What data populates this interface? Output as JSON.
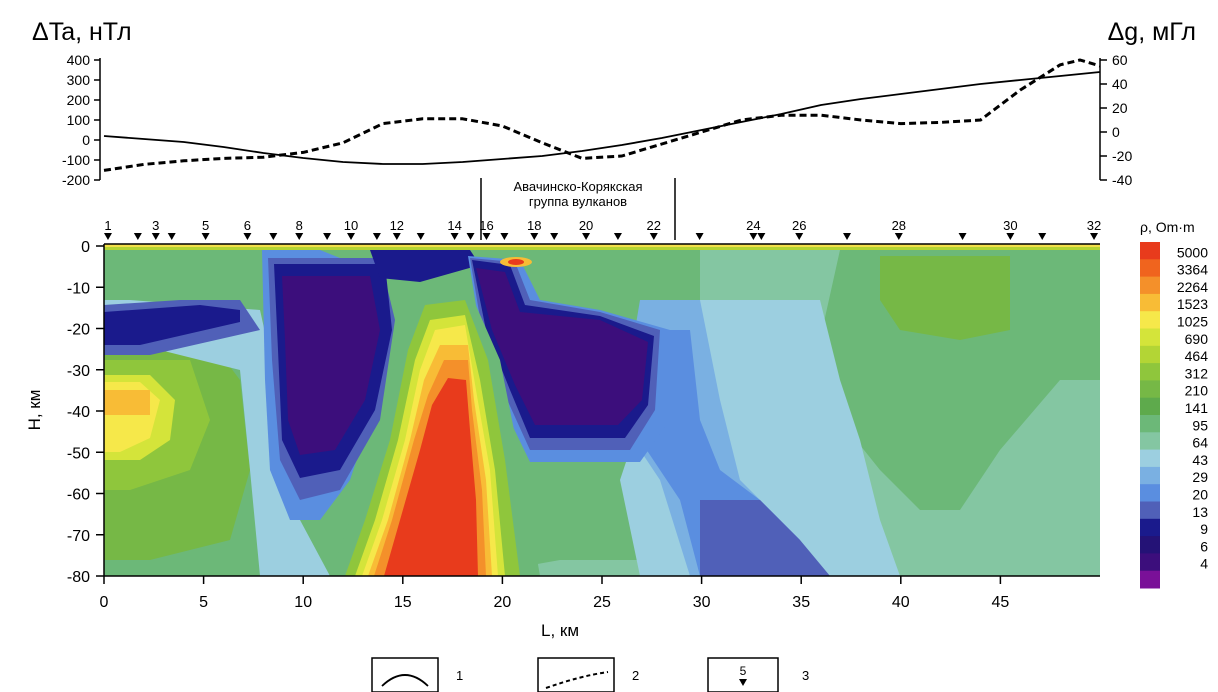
{
  "chart_data": [
    {
      "type": "line",
      "panel": "profiles",
      "left_axis_title": "ΔTa, нТл",
      "right_axis_title": "Δg, мГл",
      "left_ticks": [
        "400",
        "300",
        "200",
        "100",
        "0",
        "-100",
        "-200"
      ],
      "right_ticks": [
        "60",
        "40",
        "20",
        "0",
        "-20",
        "-40"
      ],
      "left_ylim": [
        -200,
        400
      ],
      "right_ylim": [
        -40,
        60
      ],
      "x_range_km": [
        0,
        50
      ],
      "series": [
        {
          "style": "solid",
          "axis": "left",
          "x": [
            0,
            2,
            4,
            6,
            8,
            10,
            12,
            14,
            16,
            18,
            20,
            22,
            24,
            26,
            28,
            30,
            32,
            34,
            36,
            38,
            40,
            42,
            44,
            46,
            48,
            50
          ],
          "values": [
            20,
            5,
            -10,
            -35,
            -65,
            -90,
            -110,
            -120,
            -120,
            -110,
            -95,
            -80,
            -55,
            -25,
            10,
            50,
            90,
            130,
            175,
            205,
            230,
            255,
            280,
            300,
            320,
            340
          ]
        },
        {
          "style": "dashed",
          "axis": "right",
          "x": [
            0,
            2,
            4,
            6,
            8,
            10,
            12,
            14,
            16,
            18,
            20,
            22,
            24,
            26,
            28,
            30,
            32,
            34,
            36,
            38,
            40,
            42,
            44,
            46,
            48,
            49,
            50
          ],
          "values": [
            -32,
            -27,
            -24,
            -22,
            -21,
            -17,
            -9,
            7,
            11,
            11,
            5,
            -9,
            -22,
            -20,
            -10,
            0,
            10,
            14,
            14,
            10,
            7,
            8,
            10,
            35,
            56,
            60,
            55
          ]
        }
      ],
      "group_label_line1": "Авачинско-Корякская",
      "group_label_line2": "группа вулканов"
    },
    {
      "type": "heatmap",
      "panel": "resistivity-section",
      "xlabel": "L, км",
      "ylabel": "H, км",
      "x_ticks": [
        0,
        5,
        10,
        15,
        20,
        25,
        30,
        35,
        40,
        45
      ],
      "y_ticks": [
        0,
        -10,
        -20,
        -30,
        -40,
        -50,
        -60,
        -70,
        -80
      ],
      "x_range_km": [
        0,
        50
      ],
      "depth_range_km": [
        0,
        -80
      ],
      "colorbar_title": "ρ, Om·m",
      "colorbar_levels": [
        {
          "label": "5000",
          "color": "#e83b1c"
        },
        {
          "label": "3364",
          "color": "#f0641e"
        },
        {
          "label": "2264",
          "color": "#f4902a"
        },
        {
          "label": "1523",
          "color": "#f8bc36"
        },
        {
          "label": "1025",
          "color": "#f6e84a"
        },
        {
          "label": "690",
          "color": "#d4e43a"
        },
        {
          "label": "464",
          "color": "#b3d535"
        },
        {
          "label": "312",
          "color": "#8fc63c"
        },
        {
          "label": "210",
          "color": "#76b846"
        },
        {
          "label": "141",
          "color": "#5eaa4c"
        },
        {
          "label": "95",
          "color": "#6cb878"
        },
        {
          "label": "64",
          "color": "#84c6a2"
        },
        {
          "label": "43",
          "color": "#9ccfe0"
        },
        {
          "label": "29",
          "color": "#7ab0e2"
        },
        {
          "label": "20",
          "color": "#5a8ee0"
        },
        {
          "label": "13",
          "color": "#5060b8"
        },
        {
          "label": "9",
          "color": "#1a1a8c"
        },
        {
          "label": "6",
          "color": "#241276"
        },
        {
          "label": "4",
          "color": "#3c0e7c"
        },
        {
          "label": "",
          "color": "#7a1098"
        }
      ],
      "stations": [
        {
          "x": 0.2,
          "label": "1"
        },
        {
          "x": 1.7,
          "label": ""
        },
        {
          "x": 2.6,
          "label": "3"
        },
        {
          "x": 3.4,
          "label": ""
        },
        {
          "x": 5.1,
          "label": "5"
        },
        {
          "x": 7.2,
          "label": "6"
        },
        {
          "x": 8.5,
          "label": ""
        },
        {
          "x": 9.8,
          "label": "8"
        },
        {
          "x": 11.2,
          "label": ""
        },
        {
          "x": 12.4,
          "label": "10"
        },
        {
          "x": 13.7,
          "label": ""
        },
        {
          "x": 14.7,
          "label": "12"
        },
        {
          "x": 15.9,
          "label": ""
        },
        {
          "x": 17.6,
          "label": "14"
        },
        {
          "x": 18.4,
          "label": ""
        },
        {
          "x": 19.2,
          "label": "16"
        },
        {
          "x": 20.1,
          "label": ""
        },
        {
          "x": 21.6,
          "label": "18"
        },
        {
          "x": 22.6,
          "label": ""
        },
        {
          "x": 24.2,
          "label": "20"
        },
        {
          "x": 25.8,
          "label": ""
        },
        {
          "x": 27.6,
          "label": "22"
        },
        {
          "x": 29.9,
          "label": ""
        },
        {
          "x": 32.6,
          "label": "24"
        },
        {
          "x": 33.0,
          "label": ""
        },
        {
          "x": 34.9,
          "label": "26"
        },
        {
          "x": 37.3,
          "label": ""
        },
        {
          "x": 39.9,
          "label": "28"
        },
        {
          "x": 43.1,
          "label": ""
        },
        {
          "x": 45.5,
          "label": "30"
        },
        {
          "x": 47.1,
          "label": ""
        },
        {
          "x": 49.7,
          "label": "32"
        }
      ]
    }
  ],
  "legend": [
    {
      "number": "1",
      "symbol": "solid-curve"
    },
    {
      "number": "2",
      "symbol": "dashed-curve"
    },
    {
      "number": "3",
      "symbol": "station-marker",
      "marker_label": "5"
    }
  ]
}
